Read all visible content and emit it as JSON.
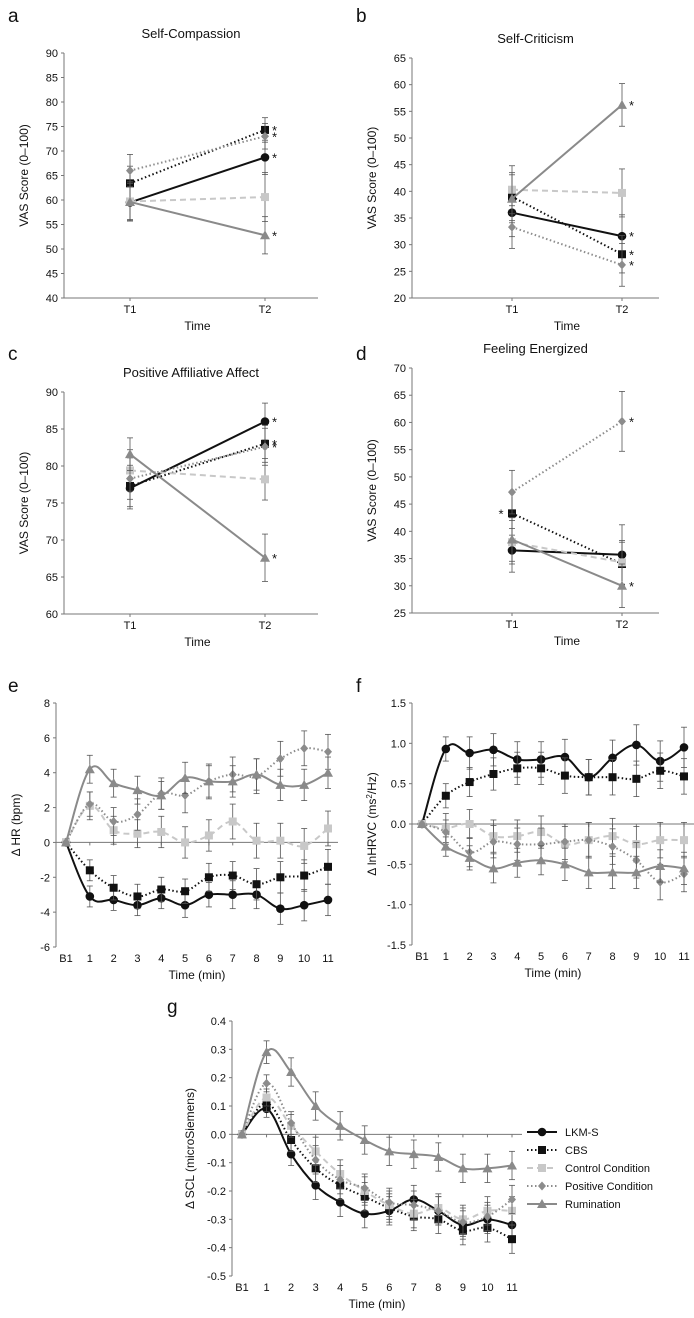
{
  "figure": {
    "legend": [
      {
        "name": "LKM-S",
        "marker": "circle",
        "color": "#111111",
        "dash": "solid"
      },
      {
        "name": "CBS",
        "marker": "square",
        "color": "#111111",
        "dash": "dotted"
      },
      {
        "name": "Control Condition",
        "marker": "square",
        "color": "#c8c8c8",
        "dash": "dashed"
      },
      {
        "name": "Positive Condition",
        "marker": "diamond",
        "color": "#8c8c8c",
        "dash": "dotted"
      },
      {
        "name": "Rumination",
        "marker": "triangle",
        "color": "#8a8a8a",
        "dash": "solid"
      }
    ]
  },
  "chart_data": [
    {
      "panel": "a",
      "type": "line",
      "title": "Self-Compassion",
      "xlabel": "Time",
      "ylabel": "VAS Score (0–100)",
      "categories": [
        "T1",
        "T2"
      ],
      "ylim": [
        40,
        90
      ],
      "yticks": [
        40,
        45,
        50,
        55,
        60,
        65,
        70,
        75,
        80,
        85,
        90
      ],
      "series": [
        {
          "name": "LKM-S",
          "values": [
            59.5,
            68.7
          ],
          "err": [
            3.5,
            3.5
          ],
          "star": [
            false,
            true
          ]
        },
        {
          "name": "CBS",
          "values": [
            63.4,
            74.3
          ],
          "err": [
            3.5,
            2.5
          ],
          "star": [
            false,
            true
          ]
        },
        {
          "name": "Control Condition",
          "values": [
            59.7,
            60.6
          ],
          "err": [
            4,
            5
          ],
          "star": [
            false,
            false
          ]
        },
        {
          "name": "Positive Condition",
          "values": [
            66.0,
            73.0
          ],
          "err": [
            3.3,
            2.6
          ],
          "star": [
            false,
            true
          ]
        },
        {
          "name": "Rumination",
          "values": [
            59.6,
            52.8
          ],
          "err": [
            3.8,
            3.8
          ],
          "star": [
            false,
            true
          ]
        }
      ]
    },
    {
      "panel": "b",
      "type": "line",
      "title": "Self-Criticism",
      "xlabel": "Time",
      "ylabel": "VAS Score (0–100)",
      "categories": [
        "T1",
        "T2"
      ],
      "ylim": [
        20,
        65
      ],
      "yticks": [
        20,
        25,
        30,
        35,
        40,
        45,
        50,
        55,
        60,
        65
      ],
      "series": [
        {
          "name": "LKM-S",
          "values": [
            36.0,
            31.6
          ],
          "err": [
            4.5,
            4.0
          ],
          "star": [
            false,
            true
          ]
        },
        {
          "name": "CBS",
          "values": [
            39.0,
            28.2
          ],
          "err": [
            4.5,
            3.5
          ],
          "star": [
            false,
            true
          ]
        },
        {
          "name": "Control Condition",
          "values": [
            40.3,
            39.7
          ],
          "err": [
            4.5,
            4.5
          ],
          "star": [
            false,
            false
          ]
        },
        {
          "name": "Positive Condition",
          "values": [
            33.3,
            26.2
          ],
          "err": [
            4.0,
            4.0
          ],
          "star": [
            false,
            true
          ]
        },
        {
          "name": "Rumination",
          "values": [
            38.6,
            56.2
          ],
          "err": [
            4.5,
            4.0
          ],
          "star": [
            false,
            true
          ]
        }
      ]
    },
    {
      "panel": "c",
      "type": "line",
      "title": "Positive Affiliative Affect",
      "xlabel": "Time",
      "ylabel": "VAS Score (0–100)",
      "categories": [
        "T1",
        "T2"
      ],
      "ylim": [
        60,
        90
      ],
      "yticks": [
        60,
        65,
        70,
        75,
        80,
        85,
        90
      ],
      "series": [
        {
          "name": "LKM-S",
          "values": [
            77.0,
            86.0
          ],
          "err": [
            2.8,
            2.5
          ],
          "star": [
            false,
            true
          ]
        },
        {
          "name": "CBS",
          "values": [
            77.3,
            83.0
          ],
          "err": [
            2.8,
            2.5
          ],
          "star": [
            false,
            true
          ]
        },
        {
          "name": "Control Condition",
          "values": [
            79.4,
            78.2
          ],
          "err": [
            2.8,
            2.8
          ],
          "star": [
            false,
            false
          ]
        },
        {
          "name": "Positive Condition",
          "values": [
            78.3,
            82.6
          ],
          "err": [
            2.8,
            2.5
          ],
          "star": [
            false,
            true
          ]
        },
        {
          "name": "Rumination",
          "values": [
            81.6,
            67.6
          ],
          "err": [
            2.2,
            3.2
          ],
          "star": [
            false,
            true
          ]
        }
      ]
    },
    {
      "panel": "d",
      "type": "line",
      "title": "Feeling Energized",
      "xlabel": "Time",
      "ylabel": "VAS Score (0–100)",
      "categories": [
        "T1",
        "T2"
      ],
      "ylim": [
        25,
        70
      ],
      "yticks": [
        25,
        30,
        35,
        40,
        45,
        50,
        55,
        60,
        65,
        70
      ],
      "series": [
        {
          "name": "LKM-S",
          "values": [
            36.5,
            35.7
          ],
          "err": [
            4.0,
            5.5
          ],
          "star": [
            false,
            false
          ]
        },
        {
          "name": "CBS",
          "values": [
            43.3,
            34.0
          ],
          "err": [
            4.0,
            4.0
          ],
          "star": [
            true,
            false
          ]
        },
        {
          "name": "Control Condition",
          "values": [
            38.0,
            34.3
          ],
          "err": [
            4.0,
            4.0
          ],
          "star": [
            false,
            false
          ]
        },
        {
          "name": "Positive Condition",
          "values": [
            47.2,
            60.2
          ],
          "err": [
            4.0,
            5.5
          ],
          "star": [
            false,
            true
          ]
        },
        {
          "name": "Rumination",
          "values": [
            38.5,
            30.0
          ],
          "err": [
            4.0,
            4.0
          ],
          "star": [
            false,
            true
          ]
        }
      ]
    },
    {
      "panel": "e",
      "type": "line",
      "title": "",
      "xlabel": "Time (min)",
      "ylabel": "Δ HR (bpm)",
      "categories": [
        "B1",
        "1",
        "2",
        "3",
        "4",
        "5",
        "6",
        "7",
        "8",
        "9",
        "10",
        "11"
      ],
      "ylim": [
        -6,
        8
      ],
      "yticks": [
        -6,
        -4,
        -2,
        0,
        2,
        4,
        6,
        8
      ],
      "series": [
        {
          "name": "LKM-S",
          "values": [
            0,
            -3.1,
            -3.3,
            -3.6,
            -3.2,
            -3.6,
            -3.0,
            -3.0,
            -3.0,
            -3.8,
            -3.6,
            -3.3
          ],
          "err": [
            0,
            0.6,
            0.6,
            0.6,
            0.6,
            0.7,
            0.7,
            0.8,
            0.8,
            0.9,
            0.9,
            0.9
          ]
        },
        {
          "name": "CBS",
          "values": [
            0,
            -1.6,
            -2.6,
            -3.1,
            -2.7,
            -2.8,
            -2.0,
            -1.9,
            -2.4,
            -2.0,
            -1.9,
            -1.4
          ],
          "err": [
            0,
            0.6,
            0.7,
            0.7,
            0.7,
            0.7,
            0.8,
            0.8,
            0.9,
            0.9,
            0.9,
            1.0
          ]
        },
        {
          "name": "Control Condition",
          "values": [
            0,
            2.1,
            0.7,
            0.5,
            0.6,
            0.0,
            0.4,
            1.2,
            0.1,
            0.1,
            -0.2,
            0.8
          ],
          "err": [
            0,
            0.8,
            0.8,
            0.8,
            0.9,
            0.9,
            0.9,
            1.0,
            1.0,
            1.0,
            1.0,
            1.0
          ]
        },
        {
          "name": "Positive Condition",
          "values": [
            0,
            2.2,
            1.2,
            1.6,
            2.8,
            2.7,
            3.5,
            3.9,
            3.8,
            4.8,
            5.4,
            5.2
          ],
          "err": [
            0,
            0.7,
            0.8,
            0.9,
            0.9,
            1.0,
            1.0,
            1.0,
            1.0,
            1.0,
            1.0,
            1.0
          ]
        },
        {
          "name": "Rumination",
          "values": [
            0,
            4.2,
            3.4,
            3.0,
            2.7,
            3.7,
            3.5,
            3.5,
            3.9,
            3.3,
            3.3,
            4.0
          ],
          "err": [
            0,
            0.8,
            0.8,
            0.8,
            0.8,
            0.9,
            0.9,
            0.9,
            0.9,
            0.9,
            0.9,
            0.9
          ]
        }
      ]
    },
    {
      "panel": "f",
      "type": "line",
      "title": "",
      "xlabel": "Time (min)",
      "ylabel": "Δ lnHRVC (ms²/Hz)",
      "categories": [
        "B1",
        "1",
        "2",
        "3",
        "4",
        "5",
        "6",
        "7",
        "8",
        "9",
        "10",
        "11"
      ],
      "ylim": [
        -1.5,
        1.5
      ],
      "yticks": [
        -1.5,
        -1.0,
        -0.5,
        0.0,
        0.5,
        1.0,
        1.5
      ],
      "series": [
        {
          "name": "LKM-S",
          "values": [
            0,
            0.93,
            0.88,
            0.92,
            0.8,
            0.8,
            0.83,
            0.58,
            0.82,
            0.98,
            0.78,
            0.95
          ],
          "err": [
            0,
            0.15,
            0.2,
            0.2,
            0.22,
            0.22,
            0.22,
            0.22,
            0.22,
            0.25,
            0.25,
            0.25
          ]
        },
        {
          "name": "CBS",
          "values": [
            0,
            0.35,
            0.52,
            0.62,
            0.69,
            0.69,
            0.6,
            0.58,
            0.58,
            0.56,
            0.66,
            0.59
          ],
          "err": [
            0,
            0.15,
            0.18,
            0.2,
            0.2,
            0.2,
            0.22,
            0.22,
            0.22,
            0.22,
            0.22,
            0.22
          ]
        },
        {
          "name": "Control Condition",
          "values": [
            0,
            -0.05,
            0.0,
            -0.15,
            -0.15,
            -0.1,
            -0.25,
            -0.2,
            -0.15,
            -0.25,
            -0.2,
            -0.2
          ],
          "err": [
            0,
            0.18,
            0.18,
            0.2,
            0.2,
            0.2,
            0.22,
            0.22,
            0.22,
            0.22,
            0.22,
            0.22
          ]
        },
        {
          "name": "Positive Condition",
          "values": [
            0,
            -0.1,
            -0.35,
            -0.22,
            -0.25,
            -0.25,
            -0.22,
            -0.2,
            -0.28,
            -0.45,
            -0.72,
            -0.62
          ],
          "err": [
            0,
            0.15,
            0.18,
            0.2,
            0.2,
            0.2,
            0.22,
            0.22,
            0.22,
            0.22,
            0.22,
            0.22
          ]
        },
        {
          "name": "Rumination",
          "values": [
            0,
            -0.28,
            -0.42,
            -0.55,
            -0.48,
            -0.45,
            -0.5,
            -0.6,
            -0.6,
            -0.6,
            -0.52,
            -0.55
          ],
          "err": [
            0,
            0.12,
            0.15,
            0.18,
            0.18,
            0.18,
            0.2,
            0.2,
            0.2,
            0.2,
            0.2,
            0.2
          ]
        }
      ]
    },
    {
      "panel": "g",
      "type": "line",
      "title": "",
      "xlabel": "Time (min)",
      "ylabel": "Δ SCL (microSiemens)",
      "categories": [
        "B1",
        "1",
        "2",
        "3",
        "4",
        "5",
        "6",
        "7",
        "8",
        "9",
        "10",
        "11"
      ],
      "ylim": [
        -0.5,
        0.4
      ],
      "yticks": [
        -0.5,
        -0.4,
        -0.3,
        -0.2,
        -0.1,
        0.0,
        0.1,
        0.2,
        0.3,
        0.4
      ],
      "series": [
        {
          "name": "LKM-S",
          "values": [
            0,
            0.09,
            -0.07,
            -0.18,
            -0.24,
            -0.28,
            -0.27,
            -0.23,
            -0.27,
            -0.32,
            -0.3,
            -0.32
          ],
          "err": [
            0,
            0.03,
            0.04,
            0.05,
            0.05,
            0.05,
            0.05,
            0.05,
            0.05,
            0.05,
            0.05,
            0.05
          ]
        },
        {
          "name": "CBS",
          "values": [
            0,
            0.11,
            -0.02,
            -0.12,
            -0.18,
            -0.22,
            -0.26,
            -0.29,
            -0.3,
            -0.34,
            -0.33,
            -0.37
          ],
          "err": [
            0,
            0.03,
            0.04,
            0.05,
            0.05,
            0.05,
            0.05,
            0.05,
            0.05,
            0.05,
            0.05,
            0.05
          ]
        },
        {
          "name": "Control Condition",
          "values": [
            0,
            0.13,
            0.03,
            -0.06,
            -0.14,
            -0.2,
            -0.25,
            -0.28,
            -0.26,
            -0.3,
            -0.27,
            -0.27
          ],
          "err": [
            0,
            0.03,
            0.04,
            0.05,
            0.05,
            0.05,
            0.05,
            0.05,
            0.05,
            0.05,
            0.05,
            0.05
          ]
        },
        {
          "name": "Positive Condition",
          "values": [
            0,
            0.18,
            0.04,
            -0.09,
            -0.16,
            -0.19,
            -0.24,
            -0.25,
            -0.27,
            -0.31,
            -0.29,
            -0.23
          ],
          "err": [
            0,
            0.03,
            0.04,
            0.05,
            0.05,
            0.05,
            0.05,
            0.05,
            0.05,
            0.05,
            0.05,
            0.05
          ]
        },
        {
          "name": "Rumination",
          "values": [
            0,
            0.29,
            0.22,
            0.1,
            0.03,
            -0.02,
            -0.06,
            -0.07,
            -0.08,
            -0.12,
            -0.12,
            -0.11
          ],
          "err": [
            0,
            0.04,
            0.05,
            0.05,
            0.05,
            0.05,
            0.05,
            0.05,
            0.05,
            0.05,
            0.05,
            0.05
          ]
        }
      ]
    }
  ]
}
